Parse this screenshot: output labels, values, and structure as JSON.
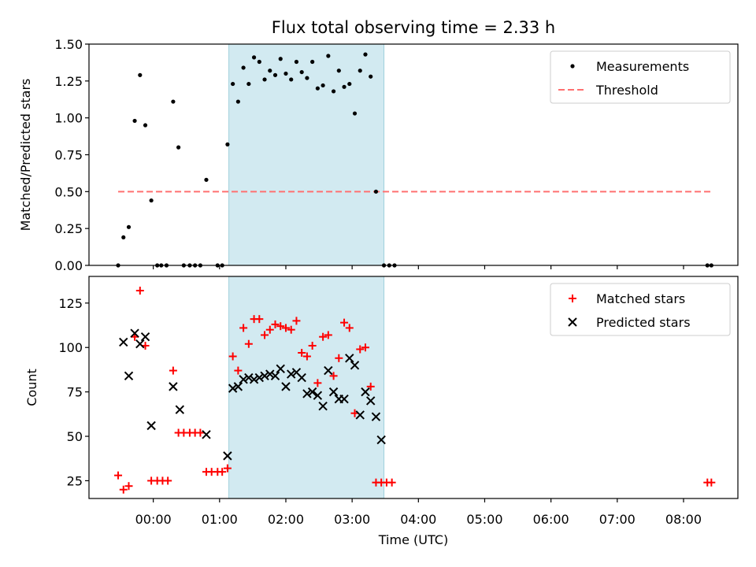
{
  "title": "Flux total observing time = 2.33 h",
  "xlabel": "Time (UTC)",
  "xticks": [
    "00:00",
    "01:00",
    "02:00",
    "03:00",
    "04:00",
    "05:00",
    "06:00",
    "07:00",
    "08:00"
  ],
  "colors": {
    "measure": "#000000",
    "threshold": "#ff7070",
    "matched": "#ff0000",
    "predicted": "#000000",
    "shade": "#add8e6"
  },
  "chart_data": [
    {
      "type": "scatter",
      "ylabel": "Matched/Predicted stars",
      "xunit": "hours from 00:00 UTC",
      "xlim": [
        -0.97,
        8.82
      ],
      "ylim": [
        0,
        1.5
      ],
      "yticks": [
        "0.00",
        "0.25",
        "0.50",
        "0.75",
        "1.00",
        "1.25",
        "1.50"
      ],
      "shaded_interval": [
        1.14,
        3.48
      ],
      "legend": {
        "position": "top-right",
        "entries": [
          "Measurements",
          "Threshold"
        ]
      },
      "threshold": {
        "name": "Threshold",
        "y": 0.5,
        "x": [
          -0.53,
          8.42
        ]
      },
      "series": [
        {
          "name": "Measurements",
          "marker": "dot",
          "x": [
            -0.53,
            -0.45,
            -0.37,
            -0.28,
            -0.2,
            -0.12,
            -0.03,
            0.06,
            0.12,
            0.2,
            0.3,
            0.38,
            0.46,
            0.55,
            0.63,
            0.71,
            0.8,
            0.97,
            1.04,
            1.12,
            1.2,
            1.28,
            1.36,
            1.44,
            1.52,
            1.6,
            1.68,
            1.76,
            1.84,
            1.92,
            2.0,
            2.08,
            2.16,
            2.24,
            2.32,
            2.4,
            2.48,
            2.56,
            2.64,
            2.72,
            2.8,
            2.88,
            2.96,
            3.04,
            3.12,
            3.2,
            3.28,
            3.36,
            3.48,
            3.56,
            3.64,
            8.36,
            8.42
          ],
          "y": [
            0.0,
            0.19,
            0.26,
            0.98,
            1.29,
            0.95,
            0.44,
            0.0,
            0.0,
            0.0,
            1.11,
            0.8,
            0.0,
            0.0,
            0.0,
            0.0,
            0.58,
            0.0,
            0.0,
            0.82,
            1.23,
            1.11,
            1.34,
            1.23,
            1.41,
            1.38,
            1.26,
            1.32,
            1.29,
            1.4,
            1.3,
            1.26,
            1.38,
            1.31,
            1.27,
            1.38,
            1.2,
            1.22,
            1.42,
            1.18,
            1.32,
            1.21,
            1.23,
            1.03,
            1.32,
            1.43,
            1.28,
            0.5,
            0.0,
            0.0,
            0.0,
            0.0,
            0.0
          ]
        }
      ]
    },
    {
      "type": "scatter",
      "ylabel": "Count",
      "xunit": "hours from 00:00 UTC",
      "xlim": [
        -0.97,
        8.82
      ],
      "ylim": [
        15,
        140
      ],
      "yticks": [
        "25",
        "50",
        "75",
        "100",
        "125"
      ],
      "shaded_interval": [
        1.14,
        3.48
      ],
      "legend": {
        "position": "top-right",
        "entries": [
          "Matched stars",
          "Predicted stars"
        ]
      },
      "series": [
        {
          "name": "Matched stars",
          "marker": "plus",
          "x": [
            -0.53,
            -0.45,
            -0.37,
            -0.28,
            -0.2,
            -0.12,
            -0.03,
            0.06,
            0.14,
            0.22,
            0.3,
            0.38,
            0.46,
            0.55,
            0.63,
            0.71,
            0.8,
            0.88,
            0.97,
            1.04,
            1.12,
            1.2,
            1.28,
            1.36,
            1.44,
            1.52,
            1.6,
            1.68,
            1.76,
            1.84,
            1.92,
            2.0,
            2.08,
            2.16,
            2.24,
            2.32,
            2.4,
            2.48,
            2.56,
            2.64,
            2.72,
            2.8,
            2.88,
            2.96,
            3.04,
            3.12,
            3.2,
            3.28,
            3.36,
            3.44,
            3.52,
            3.6,
            8.36,
            8.42
          ],
          "y": [
            28,
            20,
            22,
            106,
            132,
            101,
            25,
            25,
            25,
            25,
            87,
            52,
            52,
            52,
            52,
            52,
            30,
            30,
            30,
            30,
            32,
            95,
            87,
            111,
            102,
            116,
            116,
            107,
            110,
            113,
            112,
            111,
            110,
            115,
            97,
            95,
            101,
            80,
            106,
            107,
            84,
            94,
            114,
            111,
            63,
            99,
            100,
            78,
            24,
            24,
            24,
            24,
            24,
            24
          ]
        },
        {
          "name": "Predicted stars",
          "marker": "x",
          "x": [
            -0.45,
            -0.37,
            -0.28,
            -0.2,
            -0.12,
            -0.03,
            0.3,
            0.4,
            0.8,
            1.12,
            1.2,
            1.28,
            1.36,
            1.44,
            1.52,
            1.6,
            1.68,
            1.76,
            1.84,
            1.92,
            2.0,
            2.08,
            2.16,
            2.24,
            2.32,
            2.4,
            2.48,
            2.56,
            2.64,
            2.72,
            2.8,
            2.88,
            2.96,
            3.04,
            3.12,
            3.2,
            3.28,
            3.36,
            3.44
          ],
          "y": [
            103,
            84,
            108,
            102,
            106,
            56,
            78,
            65,
            51,
            39,
            77,
            78,
            82,
            83,
            82,
            83,
            84,
            85,
            84,
            88,
            78,
            85,
            86,
            83,
            74,
            75,
            73,
            67,
            87,
            75,
            71,
            71,
            94,
            90,
            62,
            75,
            70,
            61,
            48
          ]
        }
      ]
    }
  ]
}
